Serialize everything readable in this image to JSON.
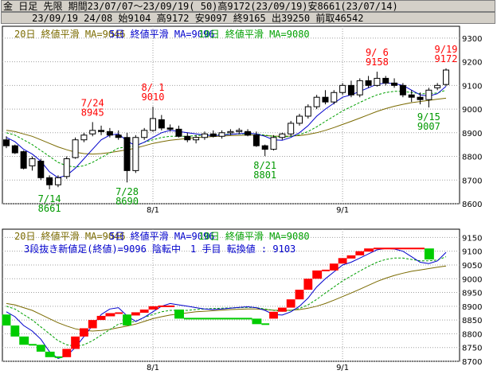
{
  "header": {
    "line1": "金 日足 先限 期間23/07/07〜23/09/19( 50)高9172(23/09/19)安8661(23/07/14)",
    "line2": "     23/09/19 24/08 始9104 高9172 安9097 終9165 出39250 前取46542"
  },
  "colors": {
    "ma20": "#7a6a00",
    "ma5": "#0000cc",
    "ma10": "#00a000",
    "up_fill": "#ffffff",
    "candle_line": "#000000",
    "kagi_up": "#ff0000",
    "kagi_down": "#00cc00",
    "high_label": "#ff0000",
    "low_label": "#009900"
  },
  "chart_data": [
    {
      "type": "candlestick",
      "legend": [
        {
          "text": "20日 終値平滑 MA=9046",
          "color": "#7a6a00"
        },
        {
          "text": "5日 終値平滑 MA=9096",
          "color": "#0000cc"
        },
        {
          "text": "10日 終値平滑 MA=9080",
          "color": "#00a000"
        }
      ],
      "ylim": [
        8600,
        9350
      ],
      "yticks": [
        "8600",
        "8700",
        "8800",
        "8900",
        "9000",
        "9100",
        "9200",
        "9300"
      ],
      "xticks": [
        {
          "label": "8/1",
          "index": 17
        },
        {
          "label": "9/1",
          "index": 39
        }
      ],
      "annotations": [
        {
          "date": "7/14",
          "value": "8661",
          "index": 5,
          "kind": "low"
        },
        {
          "date": "7/24",
          "value": "8945",
          "index": 10,
          "kind": "high"
        },
        {
          "date": "7/28",
          "value": "8690",
          "index": 14,
          "kind": "low"
        },
        {
          "date": "8/ 1",
          "value": "9010",
          "index": 17,
          "kind": "high"
        },
        {
          "date": "8/21",
          "value": "8801",
          "index": 30,
          "kind": "low"
        },
        {
          "date": "9/ 6",
          "value": "9158",
          "index": 43,
          "kind": "high"
        },
        {
          "date": "9/15",
          "value": "9007",
          "index": 49,
          "kind": "low"
        },
        {
          "date": "9/19",
          "value": "9172",
          "index": 51,
          "kind": "high"
        }
      ],
      "candles": [
        {
          "o": 8870,
          "h": 8885,
          "l": 8835,
          "c": 8845
        },
        {
          "o": 8845,
          "h": 8850,
          "l": 8810,
          "c": 8815
        },
        {
          "o": 8820,
          "h": 8825,
          "l": 8745,
          "c": 8750
        },
        {
          "o": 8760,
          "h": 8800,
          "l": 8740,
          "c": 8790
        },
        {
          "o": 8780,
          "h": 8790,
          "l": 8700,
          "c": 8710
        },
        {
          "o": 8710,
          "h": 8720,
          "l": 8661,
          "c": 8680
        },
        {
          "o": 8680,
          "h": 8720,
          "l": 8670,
          "c": 8710
        },
        {
          "o": 8715,
          "h": 8800,
          "l": 8705,
          "c": 8790
        },
        {
          "o": 8795,
          "h": 8880,
          "l": 8790,
          "c": 8870
        },
        {
          "o": 8870,
          "h": 8900,
          "l": 8860,
          "c": 8890
        },
        {
          "o": 8895,
          "h": 8945,
          "l": 8885,
          "c": 8910
        },
        {
          "o": 8910,
          "h": 8930,
          "l": 8890,
          "c": 8905
        },
        {
          "o": 8905,
          "h": 8920,
          "l": 8880,
          "c": 8890
        },
        {
          "o": 8890,
          "h": 8910,
          "l": 8870,
          "c": 8880
        },
        {
          "o": 8880,
          "h": 8900,
          "l": 8690,
          "c": 8740
        },
        {
          "o": 8740,
          "h": 8890,
          "l": 8730,
          "c": 8880
        },
        {
          "o": 8880,
          "h": 8920,
          "l": 8870,
          "c": 8910
        },
        {
          "o": 8910,
          "h": 9010,
          "l": 8905,
          "c": 8960
        },
        {
          "o": 8955,
          "h": 8975,
          "l": 8910,
          "c": 8920
        },
        {
          "o": 8920,
          "h": 8935,
          "l": 8905,
          "c": 8915
        },
        {
          "o": 8915,
          "h": 8930,
          "l": 8880,
          "c": 8885
        },
        {
          "o": 8885,
          "h": 8900,
          "l": 8860,
          "c": 8870
        },
        {
          "o": 8870,
          "h": 8890,
          "l": 8855,
          "c": 8880
        },
        {
          "o": 8880,
          "h": 8905,
          "l": 8870,
          "c": 8895
        },
        {
          "o": 8895,
          "h": 8910,
          "l": 8880,
          "c": 8885
        },
        {
          "o": 8885,
          "h": 8910,
          "l": 8875,
          "c": 8900
        },
        {
          "o": 8900,
          "h": 8915,
          "l": 8890,
          "c": 8905
        },
        {
          "o": 8905,
          "h": 8920,
          "l": 8895,
          "c": 8910
        },
        {
          "o": 8905,
          "h": 8915,
          "l": 8885,
          "c": 8890
        },
        {
          "o": 8890,
          "h": 8905,
          "l": 8840,
          "c": 8845
        },
        {
          "o": 8845,
          "h": 8850,
          "l": 8801,
          "c": 8830
        },
        {
          "o": 8830,
          "h": 8890,
          "l": 8825,
          "c": 8880
        },
        {
          "o": 8880,
          "h": 8900,
          "l": 8870,
          "c": 8895
        },
        {
          "o": 8895,
          "h": 8950,
          "l": 8885,
          "c": 8940
        },
        {
          "o": 8940,
          "h": 8980,
          "l": 8930,
          "c": 8970
        },
        {
          "o": 8970,
          "h": 9020,
          "l": 8960,
          "c": 9010
        },
        {
          "o": 9010,
          "h": 9060,
          "l": 9000,
          "c": 9050
        },
        {
          "o": 9050,
          "h": 9080,
          "l": 9020,
          "c": 9030
        },
        {
          "o": 9030,
          "h": 9080,
          "l": 9020,
          "c": 9070
        },
        {
          "o": 9070,
          "h": 9110,
          "l": 9060,
          "c": 9100
        },
        {
          "o": 9100,
          "h": 9120,
          "l": 9050,
          "c": 9060
        },
        {
          "o": 9060,
          "h": 9130,
          "l": 9050,
          "c": 9120
        },
        {
          "o": 9120,
          "h": 9140,
          "l": 9090,
          "c": 9100
        },
        {
          "o": 9100,
          "h": 9158,
          "l": 9095,
          "c": 9130
        },
        {
          "o": 9130,
          "h": 9140,
          "l": 9100,
          "c": 9110
        },
        {
          "o": 9110,
          "h": 9130,
          "l": 9090,
          "c": 9100
        },
        {
          "o": 9100,
          "h": 9110,
          "l": 9050,
          "c": 9060
        },
        {
          "o": 9060,
          "h": 9080,
          "l": 9030,
          "c": 9050
        },
        {
          "o": 9050,
          "h": 9070,
          "l": 9020,
          "c": 9040
        },
        {
          "o": 9040,
          "h": 9090,
          "l": 9007,
          "c": 9080
        },
        {
          "o": 9090,
          "h": 9110,
          "l": 9080,
          "c": 9100
        },
        {
          "o": 9104,
          "h": 9172,
          "l": 9097,
          "c": 9165
        }
      ],
      "ma5": [
        8880,
        8862,
        8830,
        8810,
        8780,
        8735,
        8710,
        8720,
        8750,
        8790,
        8830,
        8870,
        8890,
        8895,
        8865,
        8845,
        8860,
        8880,
        8900,
        8910,
        8905,
        8900,
        8895,
        8890,
        8888,
        8890,
        8893,
        8896,
        8898,
        8895,
        8885,
        8870,
        8868,
        8880,
        8900,
        8930,
        8970,
        9000,
        9025,
        9050,
        9060,
        9075,
        9090,
        9105,
        9110,
        9108,
        9100,
        9080,
        9060,
        9055,
        9065,
        9096
      ],
      "ma10": [
        8900,
        8890,
        8870,
        8850,
        8825,
        8800,
        8775,
        8760,
        8755,
        8760,
        8775,
        8795,
        8815,
        8835,
        8840,
        8845,
        8860,
        8870,
        8880,
        8885,
        8885,
        8885,
        8888,
        8890,
        8892,
        8893,
        8894,
        8895,
        8896,
        8895,
        8890,
        8885,
        8882,
        8885,
        8892,
        8905,
        8925,
        8948,
        8970,
        8992,
        9010,
        9028,
        9045,
        9060,
        9070,
        9075,
        9075,
        9070,
        9065,
        9065,
        9068,
        9080
      ],
      "ma20": [
        8910,
        8905,
        8895,
        8885,
        8870,
        8855,
        8840,
        8828,
        8818,
        8812,
        8810,
        8812,
        8816,
        8822,
        8828,
        8835,
        8845,
        8855,
        8862,
        8868,
        8872,
        8876,
        8880,
        8882,
        8884,
        8886,
        8888,
        8889,
        8890,
        8890,
        8888,
        8886,
        8885,
        8886,
        8888,
        8893,
        8900,
        8910,
        8922,
        8935,
        8948,
        8962,
        8976,
        8990,
        9002,
        9012,
        9020,
        9027,
        9032,
        9037,
        9042,
        9046
      ]
    },
    {
      "type": "kagi_three_line_break",
      "legend": [
        {
          "text": "20日 終値平滑 MA=9046",
          "color": "#7a6a00"
        },
        {
          "text": "5日 終値平滑 MA=9096",
          "color": "#0000cc"
        },
        {
          "text": "10日 終値平滑 MA=9080",
          "color": "#00a000"
        }
      ],
      "info_text": "3段抜き新値足(終値)=9096 陰転中　1 手目 転換値 : 9103",
      "ylim": [
        8700,
        9180
      ],
      "yticks": [
        "8700",
        "8750",
        "8800",
        "8850",
        "8900",
        "8950",
        "9000",
        "9050",
        "9100",
        "9150"
      ],
      "xticks": [
        {
          "label": "8/1",
          "index": 17
        },
        {
          "label": "9/1",
          "index": 39
        }
      ],
      "bricks": [
        {
          "i": 0,
          "lo": 8830,
          "hi": 8870,
          "d": "down"
        },
        {
          "i": 1,
          "lo": 8790,
          "hi": 8830,
          "d": "down"
        },
        {
          "i": 2,
          "lo": 8760,
          "hi": 8790,
          "d": "down"
        },
        {
          "i": 4,
          "lo": 8735,
          "hi": 8760,
          "d": "down"
        },
        {
          "i": 5,
          "lo": 8715,
          "hi": 8735,
          "d": "down"
        },
        {
          "i": 7,
          "lo": 8715,
          "hi": 8745,
          "d": "up"
        },
        {
          "i": 8,
          "lo": 8745,
          "hi": 8790,
          "d": "up"
        },
        {
          "i": 9,
          "lo": 8790,
          "hi": 8820,
          "d": "up"
        },
        {
          "i": 10,
          "lo": 8820,
          "hi": 8850,
          "d": "up"
        },
        {
          "i": 11,
          "lo": 8850,
          "hi": 8865,
          "d": "up"
        },
        {
          "i": 12,
          "lo": 8865,
          "hi": 8875,
          "d": "up"
        },
        {
          "i": 14,
          "lo": 8830,
          "hi": 8870,
          "d": "down"
        },
        {
          "i": 15,
          "lo": 8870,
          "hi": 8878,
          "d": "up"
        },
        {
          "i": 16,
          "lo": 8878,
          "hi": 8888,
          "d": "up"
        },
        {
          "i": 17,
          "lo": 8888,
          "hi": 8900,
          "d": "up"
        },
        {
          "i": 20,
          "lo": 8855,
          "hi": 8888,
          "d": "down"
        },
        {
          "i": 29,
          "lo": 8835,
          "hi": 8855,
          "d": "down"
        },
        {
          "i": 31,
          "lo": 8855,
          "hi": 8880,
          "d": "up"
        },
        {
          "i": 32,
          "lo": 8880,
          "hi": 8895,
          "d": "up"
        },
        {
          "i": 33,
          "lo": 8895,
          "hi": 8925,
          "d": "up"
        },
        {
          "i": 34,
          "lo": 8925,
          "hi": 8960,
          "d": "up"
        },
        {
          "i": 35,
          "lo": 8960,
          "hi": 9000,
          "d": "up"
        },
        {
          "i": 36,
          "lo": 9000,
          "hi": 9030,
          "d": "up"
        },
        {
          "i": 38,
          "lo": 9030,
          "hi": 9055,
          "d": "up"
        },
        {
          "i": 39,
          "lo": 9055,
          "hi": 9075,
          "d": "up"
        },
        {
          "i": 40,
          "lo": 9075,
          "hi": 9085,
          "d": "up"
        },
        {
          "i": 41,
          "lo": 9085,
          "hi": 9100,
          "d": "up"
        },
        {
          "i": 42,
          "lo": 9100,
          "hi": 9110,
          "d": "up"
        },
        {
          "i": 49,
          "lo": 9070,
          "hi": 9110,
          "d": "down"
        }
      ]
    }
  ]
}
